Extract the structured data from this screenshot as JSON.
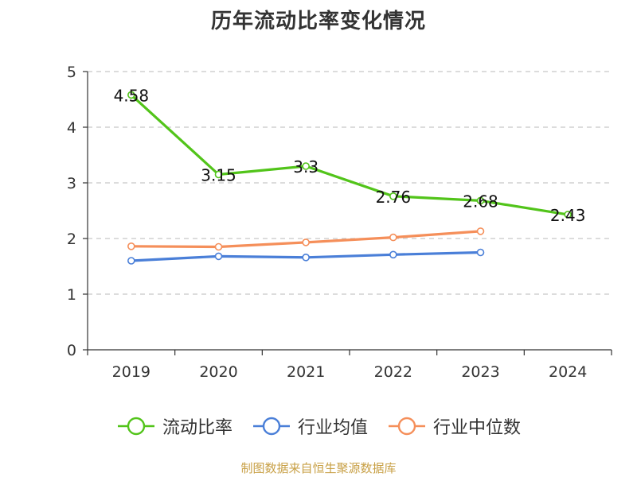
{
  "title": "历年流动比率变化情况",
  "source": "制图数据来自恒生聚源数据库",
  "chart_data": {
    "type": "line",
    "title": "历年流动比率变化情况",
    "xlabel": "",
    "ylabel": "",
    "categories": [
      "2019",
      "2020",
      "2021",
      "2022",
      "2023",
      "2024"
    ],
    "ylim": [
      0,
      5
    ],
    "yticks": [
      0,
      1,
      2,
      3,
      4,
      5
    ],
    "grid": true,
    "legend_position": "bottom",
    "series": [
      {
        "name": "流动比率",
        "color": "#52c41a",
        "values": [
          4.58,
          3.15,
          3.3,
          2.76,
          2.68,
          2.43
        ],
        "data_labels": [
          "4.58",
          "3.15",
          "3.3",
          "2.76",
          "2.68",
          "2.43"
        ]
      },
      {
        "name": "行业均值",
        "color": "#4a7fd8",
        "values": [
          1.6,
          1.68,
          1.66,
          1.71,
          1.75,
          null
        ]
      },
      {
        "name": "行业中位数",
        "color": "#f58f5a",
        "values": [
          1.86,
          1.85,
          1.93,
          2.02,
          2.13,
          null
        ]
      }
    ]
  }
}
